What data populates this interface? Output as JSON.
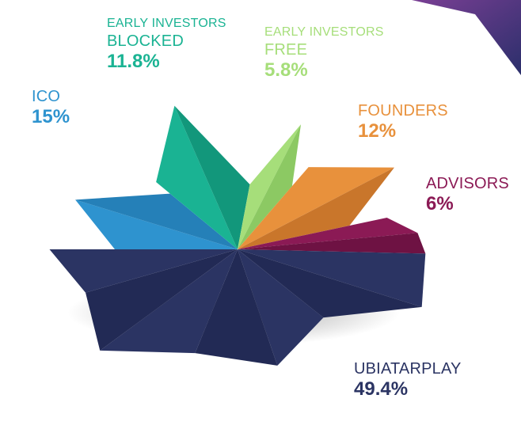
{
  "chart_data": {
    "type": "pie",
    "title": "",
    "slices": [
      {
        "label_lines": [
          "ICO"
        ],
        "value": 15,
        "display": "15%",
        "color": "#2e93cf",
        "color_dark": "#2580b8"
      },
      {
        "label_lines": [
          "EARLY INVESTORS",
          "BLOCKED"
        ],
        "value": 11.8,
        "display": "11.8%",
        "color": "#1ab393",
        "color_dark": "#12977b"
      },
      {
        "label_lines": [
          "EARLY INVESTORS",
          "FREE"
        ],
        "value": 5.8,
        "display": "5.8%",
        "color": "#a6de7a",
        "color_dark": "#8cc963"
      },
      {
        "label_lines": [
          "FOUNDERS"
        ],
        "value": 12,
        "display": "12%",
        "color": "#e8913c",
        "color_dark": "#c9762b"
      },
      {
        "label_lines": [
          "ADVISORS"
        ],
        "value": 6,
        "display": "6%",
        "color": "#8b1a55",
        "color_dark": "#6e1243"
      },
      {
        "label_lines": [
          "UBIATARPLAY"
        ],
        "value": 49.4,
        "display": "49.4%",
        "color": "#2b3463",
        "color_dark": "#222a55"
      }
    ]
  }
}
